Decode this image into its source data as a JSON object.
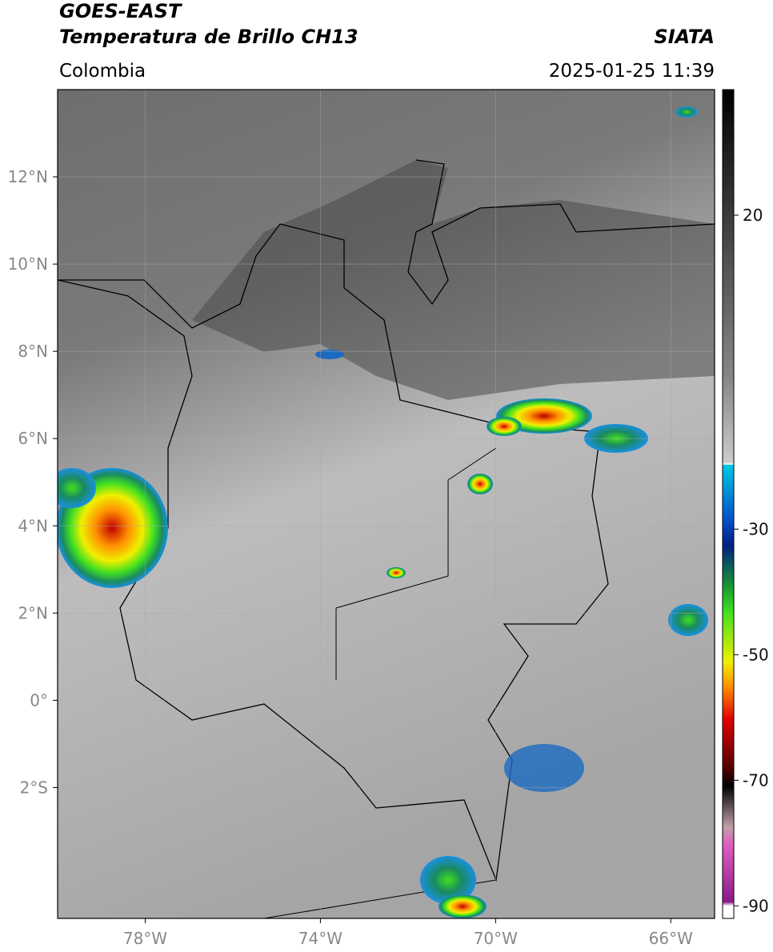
{
  "header": {
    "title": "GOES-EAST",
    "subtitle": "Temperatura de Brillo CH13",
    "region": "Colombia",
    "source": "SIATA",
    "datetime": "2025-01-25 11:39"
  },
  "map": {
    "xlim": [
      -80,
      -65
    ],
    "ylim": [
      -5,
      14
    ],
    "xticks": [
      {
        "value": -78,
        "label": "78°W"
      },
      {
        "value": -74,
        "label": "74°W"
      },
      {
        "value": -70,
        "label": "70°W"
      },
      {
        "value": -66,
        "label": "66°W"
      }
    ],
    "yticks": [
      {
        "value": 12,
        "label": "12°N"
      },
      {
        "value": 10,
        "label": "10°N"
      },
      {
        "value": 8,
        "label": "8°N"
      },
      {
        "value": 6,
        "label": "6°N"
      },
      {
        "value": 4,
        "label": "4°N"
      },
      {
        "value": 2,
        "label": "2°N"
      },
      {
        "value": 0,
        "label": "0°"
      },
      {
        "value": -2,
        "label": "2°S"
      }
    ],
    "grid": true
  },
  "colorbar": {
    "clim": [
      -92,
      40
    ],
    "ticks": [
      20,
      -30,
      -50,
      -70,
      -90
    ]
  }
}
